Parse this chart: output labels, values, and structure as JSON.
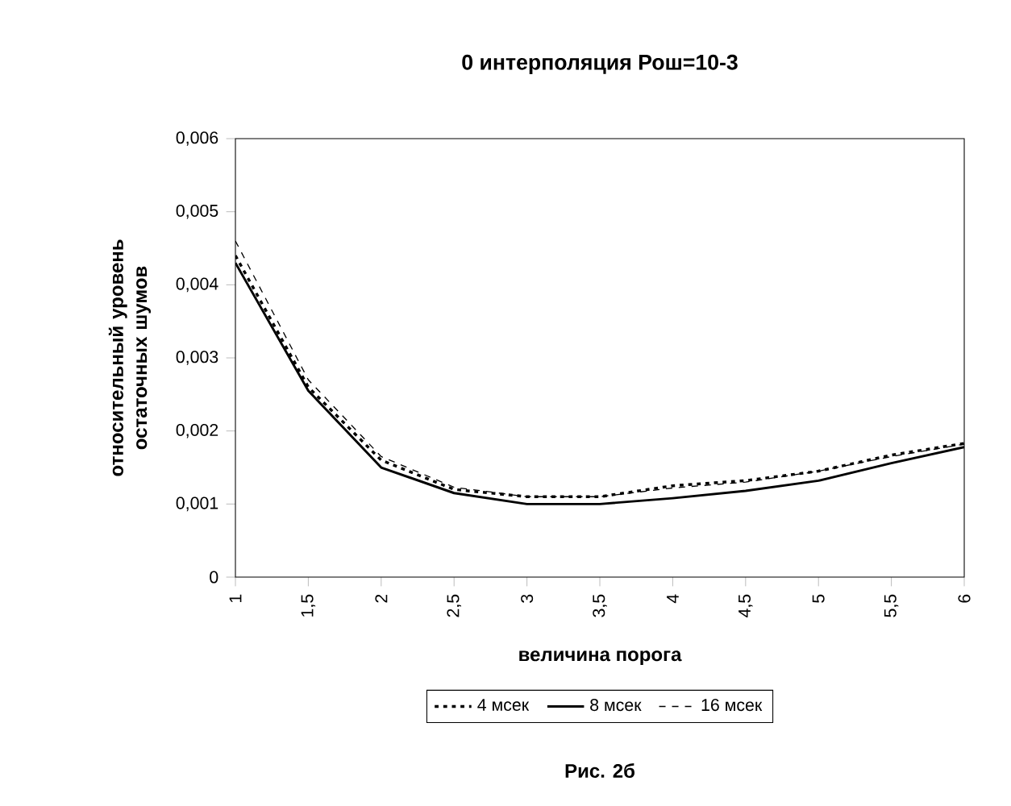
{
  "chart_data": {
    "type": "line",
    "title": "0 интерполяция Рош=10-3",
    "xlabel": "величина порога",
    "ylabel": "относительный уровень остаточных шумов",
    "categories": [
      "1",
      "1,5",
      "2",
      "2,5",
      "3",
      "3,5",
      "4",
      "4,5",
      "5",
      "5,5",
      "6"
    ],
    "series": [
      {
        "name": "4 мсек",
        "color": "#000000",
        "line_style": "dotted",
        "values": [
          0.0044,
          0.0026,
          0.0016,
          0.0012,
          0.0011,
          0.0011,
          0.00125,
          0.00132,
          0.00145,
          0.00167,
          0.00183
        ]
      },
      {
        "name": "8 мсек",
        "color": "#000000",
        "line_style": "solid",
        "values": [
          0.0043,
          0.00255,
          0.0015,
          0.00115,
          0.001,
          0.001,
          0.00108,
          0.00118,
          0.00132,
          0.00156,
          0.00178
        ]
      },
      {
        "name": "16 мсек",
        "color": "#000000",
        "line_style": "dashed",
        "values": [
          0.0046,
          0.0027,
          0.00165,
          0.00123,
          0.0011,
          0.0011,
          0.00122,
          0.0013,
          0.00145,
          0.00165,
          0.00182
        ]
      }
    ],
    "ylim": [
      0,
      0.006
    ],
    "yticks": [
      {
        "value": 0,
        "label": "0"
      },
      {
        "value": 0.001,
        "label": "0,001"
      },
      {
        "value": 0.002,
        "label": "0,002"
      },
      {
        "value": 0.003,
        "label": "0,003"
      },
      {
        "value": 0.004,
        "label": "0,004"
      },
      {
        "value": 0.005,
        "label": "0,005"
      },
      {
        "value": 0.006,
        "label": "0,006"
      }
    ],
    "legend": "bottom",
    "grid": false,
    "marker": "none",
    "annotations": [
      "Рис. 2б"
    ]
  }
}
